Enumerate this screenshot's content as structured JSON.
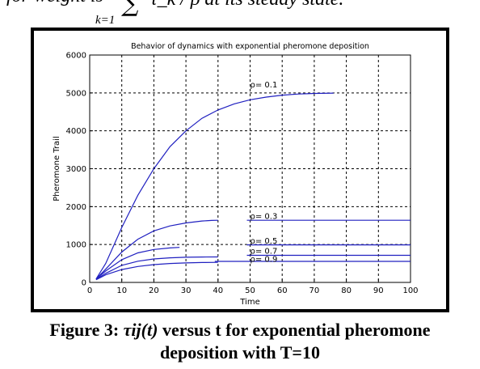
{
  "top_formula": {
    "prefix": "for weight is",
    "sum_symbol": "∑",
    "sum_lower": "k=1",
    "suffix": "τ_k / ρ  at its steady state."
  },
  "caption": {
    "line1_prefix": "Figure 3: ",
    "line1_symbol": "τij(t)",
    "line1_suffix": " versus t for exponential pheromone",
    "line2": "deposition with T=10"
  },
  "chart_data": {
    "type": "line",
    "title": "Behavior of dynamics with exponential pheromone deposition",
    "xlabel": "Time",
    "ylabel": "Pheromone Trail",
    "xlim": [
      0,
      100
    ],
    "ylim": [
      0,
      6000
    ],
    "xticks": [
      0,
      10,
      20,
      30,
      40,
      50,
      60,
      70,
      80,
      90,
      100
    ],
    "yticks": [
      0,
      1000,
      2000,
      3000,
      4000,
      5000,
      6000
    ],
    "grid": true,
    "line_color": "#2020c0",
    "series": [
      {
        "curve": {
          "x": [
            2,
            5,
            10,
            15,
            20,
            25,
            30,
            35,
            40,
            45,
            50,
            55,
            60,
            65,
            70,
            76
          ],
          "y": [
            90,
            500,
            1450,
            2300,
            3000,
            3580,
            4000,
            4330,
            4550,
            4710,
            4820,
            4890,
            4940,
            4970,
            4985,
            4995
          ]
        },
        "level": null
      },
      {
        "curve": {
          "x": [
            2,
            5,
            10,
            15,
            20,
            25,
            30,
            35,
            38,
            40
          ],
          "y": [
            90,
            350,
            800,
            1140,
            1360,
            1490,
            1570,
            1620,
            1635,
            1640
          ]
        },
        "level": {
          "y": 1640,
          "x": [
            49,
            100
          ]
        }
      },
      {
        "curve": {
          "x": [
            2,
            5,
            10,
            15,
            20,
            25,
            28
          ],
          "y": [
            90,
            300,
            600,
            780,
            870,
            910,
            925
          ]
        },
        "level": {
          "y": 990,
          "x": [
            49,
            100
          ]
        }
      },
      {
        "curve": {
          "x": [
            2,
            5,
            10,
            15,
            20,
            25,
            30,
            35,
            40
          ],
          "y": [
            80,
            240,
            450,
            560,
            620,
            650,
            665,
            670,
            672
          ]
        },
        "level": {
          "y": 715,
          "x": [
            49,
            100
          ]
        }
      },
      {
        "curve": {
          "x": [
            2,
            5,
            10,
            15,
            20,
            25,
            30,
            35,
            40
          ],
          "y": [
            70,
            200,
            340,
            420,
            470,
            500,
            515,
            525,
            530
          ]
        },
        "level": {
          "y": 555,
          "x": [
            39,
            100
          ]
        }
      }
    ],
    "annotations": [
      {
        "text": "ρ= 0.1",
        "x": 50,
        "y": 5150
      },
      {
        "text": "ρ= 0.3",
        "x": 50,
        "y": 1680
      },
      {
        "text": "ρ= 0.5",
        "x": 50,
        "y": 1030
      },
      {
        "text": "ρ= 0.7",
        "x": 50,
        "y": 755
      },
      {
        "text": "ρ= 0.9",
        "x": 50,
        "y": 540
      }
    ]
  }
}
